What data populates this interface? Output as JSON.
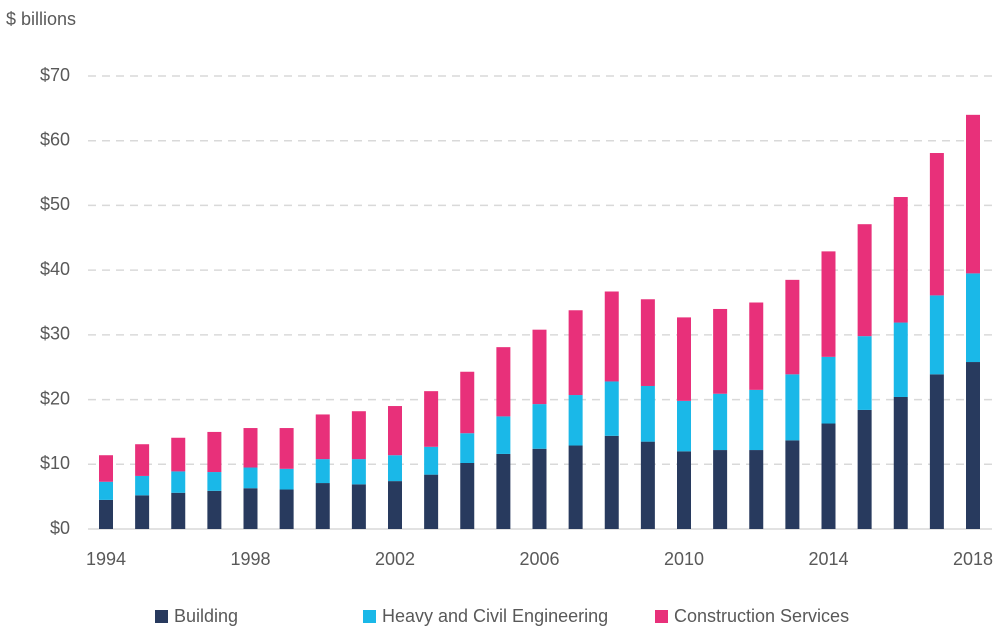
{
  "chart_data": {
    "type": "stacked_bar",
    "y_label": "$ billions",
    "categories": [
      "1994",
      null,
      null,
      null,
      "1998",
      null,
      null,
      null,
      "2002",
      null,
      null,
      null,
      "2006",
      null,
      null,
      null,
      "2010",
      null,
      null,
      null,
      "2014",
      null,
      null,
      null,
      "2018"
    ],
    "series": [
      {
        "name": "Building",
        "color": "#283a5e",
        "values": [
          4.5,
          5.2,
          5.6,
          5.9,
          6.3,
          6.1,
          7.1,
          6.9,
          7.4,
          8.4,
          10.2,
          11.6,
          12.4,
          12.9,
          14.4,
          13.5,
          12.0,
          12.2,
          12.2,
          13.7,
          16.3,
          18.4,
          20.4,
          23.9,
          25.8
        ]
      },
      {
        "name": "Heavy and Civil Engineering",
        "color": "#1ab8e8",
        "values": [
          2.8,
          3.0,
          3.3,
          2.9,
          3.2,
          3.2,
          3.7,
          3.9,
          4.0,
          4.3,
          4.6,
          5.8,
          6.9,
          7.8,
          8.4,
          8.6,
          7.8,
          8.7,
          9.3,
          10.2,
          10.3,
          11.4,
          11.5,
          12.2,
          13.7
        ]
      },
      {
        "name": "Construction Services",
        "color": "#e8307a",
        "values": [
          4.1,
          4.9,
          5.2,
          6.2,
          6.1,
          6.3,
          6.9,
          7.4,
          7.6,
          8.6,
          9.5,
          10.7,
          11.5,
          13.1,
          13.9,
          13.4,
          12.9,
          13.1,
          13.5,
          14.6,
          16.3,
          17.3,
          19.4,
          22.0,
          24.5
        ]
      }
    ],
    "ylim": [
      0,
      70
    ],
    "yticks": [
      {
        "value": 0,
        "label": "$0"
      },
      {
        "value": 10,
        "label": "$10"
      },
      {
        "value": 20,
        "label": "$20"
      },
      {
        "value": 30,
        "label": "$30"
      },
      {
        "value": 40,
        "label": "$40"
      },
      {
        "value": 50,
        "label": "$50"
      },
      {
        "value": 60,
        "label": "$60"
      },
      {
        "value": 70,
        "label": "$70"
      }
    ],
    "grid": true,
    "legend": "bottom"
  }
}
